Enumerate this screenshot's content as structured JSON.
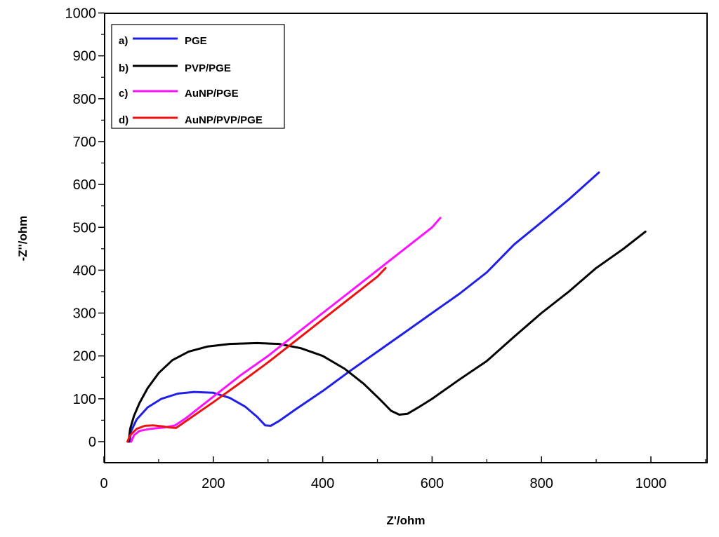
{
  "chart_data": {
    "type": "line",
    "title": "",
    "xlabel": "Z'/ohm",
    "ylabel": "-Z''/ohm",
    "xlim": [
      0,
      1100
    ],
    "ylim": [
      -50,
      1000
    ],
    "x_ticks": [
      0,
      200,
      400,
      600,
      800,
      1000
    ],
    "y_ticks": [
      0,
      100,
      200,
      300,
      400,
      500,
      600,
      700,
      800,
      900,
      1000
    ],
    "grid": false,
    "legend_position": "top-left",
    "series": [
      {
        "marker": "a)",
        "name": "PGE",
        "color": "#1f1fe8",
        "points": [
          [
            47,
            0
          ],
          [
            50,
            25
          ],
          [
            60,
            52
          ],
          [
            80,
            80
          ],
          [
            105,
            100
          ],
          [
            135,
            112
          ],
          [
            165,
            116
          ],
          [
            200,
            114
          ],
          [
            230,
            102
          ],
          [
            258,
            82
          ],
          [
            280,
            58
          ],
          [
            295,
            38
          ],
          [
            305,
            37
          ],
          [
            320,
            48
          ],
          [
            350,
            75
          ],
          [
            400,
            118
          ],
          [
            450,
            165
          ],
          [
            500,
            210
          ],
          [
            550,
            255
          ],
          [
            600,
            300
          ],
          [
            650,
            345
          ],
          [
            700,
            395
          ],
          [
            750,
            460
          ],
          [
            800,
            512
          ],
          [
            850,
            565
          ],
          [
            905,
            628
          ]
        ]
      },
      {
        "marker": "b)",
        "name": "PVP/PGE",
        "color": "#000000",
        "points": [
          [
            45,
            0
          ],
          [
            48,
            30
          ],
          [
            55,
            60
          ],
          [
            65,
            90
          ],
          [
            80,
            125
          ],
          [
            100,
            160
          ],
          [
            125,
            190
          ],
          [
            155,
            210
          ],
          [
            190,
            222
          ],
          [
            230,
            228
          ],
          [
            280,
            230
          ],
          [
            320,
            228
          ],
          [
            360,
            218
          ],
          [
            400,
            200
          ],
          [
            440,
            170
          ],
          [
            475,
            135
          ],
          [
            505,
            98
          ],
          [
            525,
            72
          ],
          [
            540,
            63
          ],
          [
            555,
            65
          ],
          [
            575,
            80
          ],
          [
            600,
            100
          ],
          [
            650,
            145
          ],
          [
            700,
            188
          ],
          [
            750,
            245
          ],
          [
            800,
            300
          ],
          [
            850,
            350
          ],
          [
            900,
            405
          ],
          [
            950,
            450
          ],
          [
            990,
            490
          ]
        ]
      },
      {
        "marker": "c)",
        "name": "AuNP/PGE",
        "color": "#ff10ff",
        "points": [
          [
            50,
            0
          ],
          [
            55,
            15
          ],
          [
            65,
            25
          ],
          [
            85,
            30
          ],
          [
            110,
            33
          ],
          [
            130,
            38
          ],
          [
            150,
            55
          ],
          [
            200,
            105
          ],
          [
            250,
            155
          ],
          [
            300,
            200
          ],
          [
            350,
            250
          ],
          [
            400,
            300
          ],
          [
            450,
            350
          ],
          [
            500,
            400
          ],
          [
            550,
            450
          ],
          [
            600,
            500
          ],
          [
            615,
            522
          ]
        ]
      },
      {
        "marker": "d)",
        "name": "AuNP/PVP/PGE",
        "color": "#ee1111",
        "points": [
          [
            43,
            0
          ],
          [
            48,
            15
          ],
          [
            60,
            30
          ],
          [
            75,
            37
          ],
          [
            90,
            38
          ],
          [
            105,
            36
          ],
          [
            120,
            33
          ],
          [
            132,
            32
          ],
          [
            150,
            48
          ],
          [
            200,
            92
          ],
          [
            250,
            138
          ],
          [
            300,
            185
          ],
          [
            350,
            235
          ],
          [
            400,
            285
          ],
          [
            450,
            335
          ],
          [
            500,
            385
          ],
          [
            515,
            405
          ]
        ]
      }
    ]
  }
}
